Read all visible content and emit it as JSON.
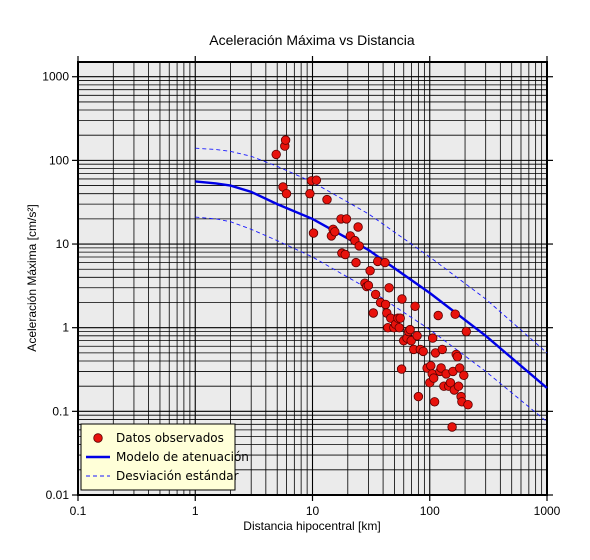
{
  "chart_data": {
    "type": "scatter",
    "title": "Aceleración Máxima vs Distancia",
    "xlabel": "Distancia hipocentral [km]",
    "ylabel": "Aceleración Máxima [cm/s²]",
    "xscale": "log",
    "yscale": "log",
    "xlim": [
      0.1,
      1000
    ],
    "ylim": [
      0.01,
      1500
    ],
    "grid": true,
    "legend_position": "bottom-left",
    "x_ticks": [
      "0.1",
      "1",
      "10",
      "100",
      "1000"
    ],
    "y_ticks": [
      "0.01",
      "0.1",
      "1",
      "10",
      "100",
      "1000"
    ],
    "colors": {
      "plot_background": "#ebebeb",
      "grid": "#000000",
      "points_fill": "#e8120c",
      "points_edge": "#5a0000",
      "model_line": "#0000e6",
      "std_lines": "#1a1aff",
      "legend_background": "#ffffd8"
    },
    "series": [
      {
        "name": "Datos observados",
        "kind": "scatter",
        "points": [
          [
            4.9,
            118
          ],
          [
            5.6,
            48
          ],
          [
            5.8,
            148
          ],
          [
            5.9,
            175
          ],
          [
            6.0,
            40
          ],
          [
            9.5,
            40
          ],
          [
            9.8,
            57
          ],
          [
            10.2,
            13.5
          ],
          [
            10.8,
            58
          ],
          [
            13.3,
            34
          ],
          [
            14.5,
            12.5
          ],
          [
            15.0,
            15
          ],
          [
            15.5,
            14
          ],
          [
            17.5,
            20
          ],
          [
            17.8,
            7.8
          ],
          [
            19.0,
            7.5
          ],
          [
            19.5,
            20
          ],
          [
            21.0,
            12.5
          ],
          [
            23.0,
            11
          ],
          [
            23.5,
            6
          ],
          [
            24.5,
            16
          ],
          [
            25.0,
            9.5
          ],
          [
            28.0,
            3.4
          ],
          [
            29.0,
            3.1
          ],
          [
            30.0,
            3.2
          ],
          [
            31.0,
            4.8
          ],
          [
            33.0,
            1.5
          ],
          [
            34.5,
            2.5
          ],
          [
            36.0,
            6.2
          ],
          [
            38.0,
            2.0
          ],
          [
            41.5,
            6.0
          ],
          [
            42.0,
            1.9
          ],
          [
            43.0,
            1.5
          ],
          [
            44.0,
            1.0
          ],
          [
            45.0,
            3.0
          ],
          [
            46.5,
            1.3
          ],
          [
            49.5,
            1.0
          ],
          [
            51.0,
            1.1
          ],
          [
            53.5,
            1.3
          ],
          [
            55.0,
            1.0
          ],
          [
            56.0,
            1.3
          ],
          [
            57.5,
            0.32
          ],
          [
            58.0,
            2.2
          ],
          [
            60.0,
            0.7
          ],
          [
            64.0,
            0.75
          ],
          [
            66.0,
            0.9
          ],
          [
            68.0,
            0.95
          ],
          [
            69.5,
            0.7
          ],
          [
            73.0,
            0.55
          ],
          [
            75.0,
            1.8
          ],
          [
            78.0,
            0.8
          ],
          [
            80.0,
            0.15
          ],
          [
            83.0,
            0.55
          ],
          [
            88.0,
            0.52
          ],
          [
            95.0,
            0.33
          ],
          [
            100.0,
            0.22
          ],
          [
            102.0,
            0.35
          ],
          [
            105.0,
            0.28
          ],
          [
            106.0,
            0.75
          ],
          [
            108.0,
            0.25
          ],
          [
            110.0,
            0.13
          ],
          [
            112.0,
            0.5
          ],
          [
            118.0,
            1.4
          ],
          [
            122.0,
            0.3
          ],
          [
            125.0,
            0.33
          ],
          [
            128.0,
            0.55
          ],
          [
            132.0,
            0.2
          ],
          [
            138.0,
            0.28
          ],
          [
            145.0,
            0.2
          ],
          [
            150.0,
            0.22
          ],
          [
            155.0,
            0.065
          ],
          [
            158.0,
            0.3
          ],
          [
            162.0,
            0.18
          ],
          [
            165.0,
            1.45
          ],
          [
            168.0,
            0.48
          ],
          [
            172.0,
            0.45
          ],
          [
            176.0,
            0.2
          ],
          [
            180.0,
            0.33
          ],
          [
            185.0,
            0.15
          ],
          [
            188.0,
            0.13
          ],
          [
            195.0,
            0.27
          ],
          [
            205.0,
            0.9
          ],
          [
            212.0,
            0.12
          ]
        ]
      },
      {
        "name": "Modelo de atenuación",
        "kind": "line",
        "points": [
          [
            1,
            56
          ],
          [
            1.5,
            53
          ],
          [
            2,
            50
          ],
          [
            3,
            42
          ],
          [
            5,
            30
          ],
          [
            10,
            20
          ],
          [
            30,
            8.5
          ],
          [
            100,
            2.6
          ],
          [
            300,
            0.8
          ],
          [
            1000,
            0.19
          ]
        ]
      },
      {
        "name": "Desviación estándar",
        "kind": "dashed-line",
        "points": [
          [
            1,
            140
          ],
          [
            1.5,
            135
          ],
          [
            2,
            128
          ],
          [
            3,
            112
          ],
          [
            5,
            85
          ],
          [
            10,
            55
          ],
          [
            30,
            23
          ],
          [
            100,
            7.0
          ],
          [
            300,
            2.2
          ],
          [
            1000,
            0.5
          ]
        ]
      },
      {
        "name": "",
        "kind": "dashed-line",
        "points": [
          [
            1,
            21
          ],
          [
            1.5,
            20
          ],
          [
            2,
            18.5
          ],
          [
            3,
            15
          ],
          [
            5,
            11
          ],
          [
            10,
            7.0
          ],
          [
            30,
            2.9
          ],
          [
            100,
            0.95
          ],
          [
            300,
            0.3
          ],
          [
            1000,
            0.075
          ]
        ]
      }
    ]
  }
}
